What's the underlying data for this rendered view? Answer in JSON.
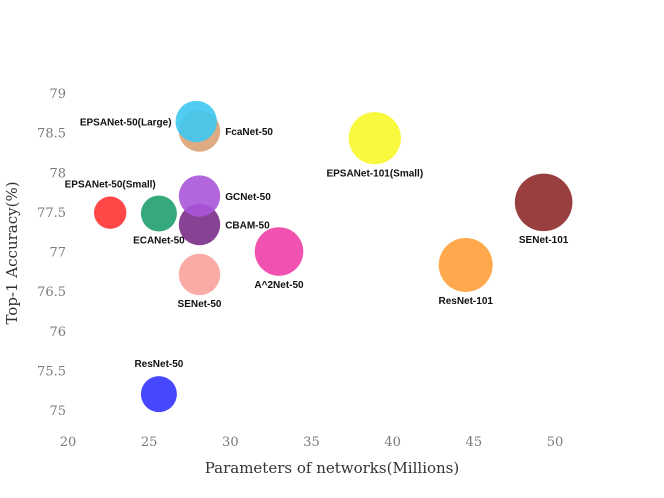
{
  "chart_data": {
    "type": "scatter",
    "title": "",
    "xlabel": "Parameters of networks(Millions)",
    "ylabel": "Top-1 Accuracy(%)",
    "xlim": [
      20,
      52
    ],
    "ylim": [
      74.8,
      79.3
    ],
    "x_ticks": [
      20,
      25,
      30,
      35,
      40,
      45,
      50
    ],
    "y_ticks": [
      75,
      75.5,
      76,
      76.5,
      77,
      77.5,
      78,
      78.5,
      79
    ],
    "grid": false,
    "points": [
      {
        "label": "ResNet-50",
        "x": 25.6,
        "y": 75.2,
        "color": "#3333ff",
        "size": 1.0,
        "label_pos": "above"
      },
      {
        "label": "SENet-50",
        "x": 28.1,
        "y": 76.71,
        "color": "#f9a29b",
        "size": 1.15,
        "label_pos": "below"
      },
      {
        "label": "CBAM-50",
        "x": 28.1,
        "y": 77.34,
        "color": "#7b2d87",
        "size": 1.15,
        "label_pos": "right"
      },
      {
        "label": "GCNet-50",
        "x": 28.1,
        "y": 77.7,
        "color": "#a855d9",
        "size": 1.15,
        "label_pos": "right"
      },
      {
        "label": "ECANet-50",
        "x": 25.6,
        "y": 77.48,
        "color": "#1f9e6e",
        "size": 1.0,
        "label_pos": "below"
      },
      {
        "label": "EPSANet-50(Small)",
        "x": 22.6,
        "y": 77.49,
        "color": "#ff3333",
        "size": 0.9,
        "label_pos": "above"
      },
      {
        "label": "FcaNet-50",
        "x": 28.1,
        "y": 78.52,
        "color": "#dca276",
        "size": 1.15,
        "label_pos": "right"
      },
      {
        "label": "EPSANet-50(Large)",
        "x": 27.9,
        "y": 78.64,
        "color": "#3ec6f2",
        "size": 1.15,
        "label_pos": "left"
      },
      {
        "label": "A^2Net-50",
        "x": 33.0,
        "y": 77.0,
        "color": "#f03fa8",
        "size": 1.35,
        "label_pos": "below"
      },
      {
        "label": "EPSANet-101(Small)",
        "x": 38.9,
        "y": 78.43,
        "color": "#f7f72a",
        "size": 1.45,
        "label_pos": "below"
      },
      {
        "label": "ResNet-101",
        "x": 44.5,
        "y": 76.83,
        "color": "#ff9f3a",
        "size": 1.5,
        "label_pos": "below"
      },
      {
        "label": "SENet-101",
        "x": 49.3,
        "y": 77.62,
        "color": "#8f2a2a",
        "size": 1.6,
        "label_pos": "below"
      }
    ]
  }
}
